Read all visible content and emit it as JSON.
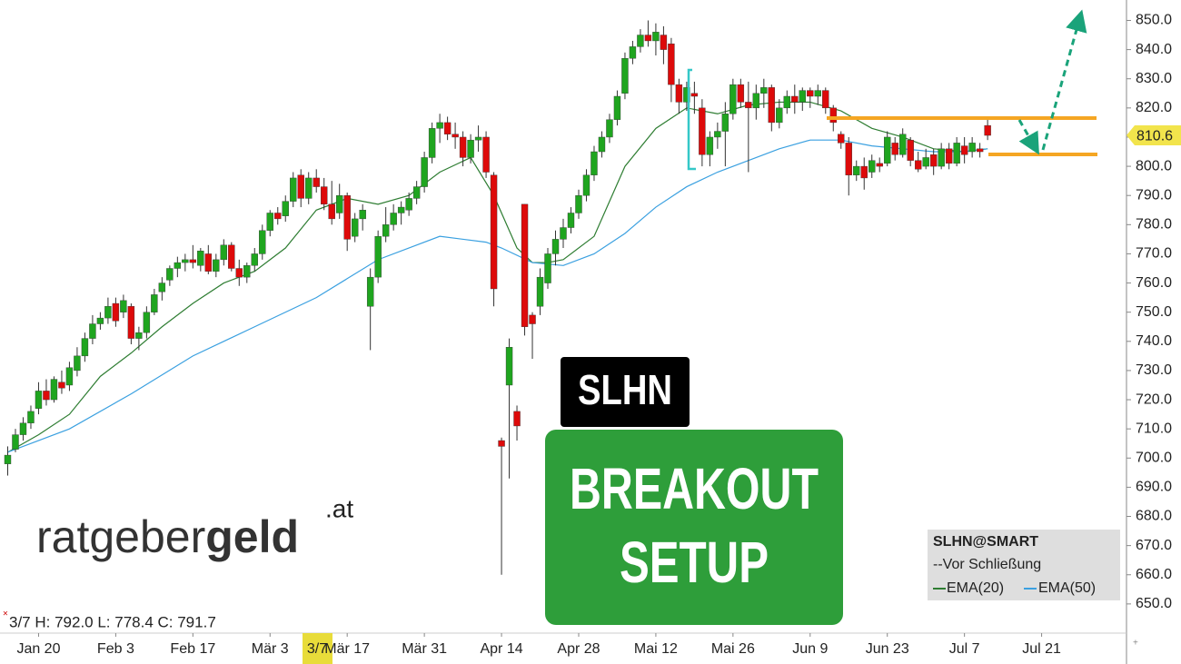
{
  "chart_data": {
    "type": "candlestick",
    "name": "SLHN@SMART",
    "legend_note": "Vor Schließung",
    "info": "3/7 H: 792.0 L: 778.4 C: 791.7",
    "crosshair_label": "3/7",
    "up_color": "#1fa51f",
    "down_color": "#dd0a0a",
    "last_price_color": "#f2e44c",
    "xlim": [
      -1,
      145
    ],
    "ylim": [
      640,
      857
    ],
    "xticks": [
      {
        "value": 4,
        "label": "Jan 20"
      },
      {
        "value": 14,
        "label": "Feb 3"
      },
      {
        "value": 24,
        "label": "Feb 17"
      },
      {
        "value": 34,
        "label": "Mär 3"
      },
      {
        "value": 44,
        "label": "Mär 17"
      },
      {
        "value": 54,
        "label": "Mär 31"
      },
      {
        "value": 64,
        "label": "Apr 14"
      },
      {
        "value": 74,
        "label": "Apr 28"
      },
      {
        "value": 84,
        "label": "Mai 12"
      },
      {
        "value": 94,
        "label": "Mai 26"
      },
      {
        "value": 104,
        "label": "Jun 9"
      },
      {
        "value": 114,
        "label": "Jun 23"
      },
      {
        "value": 124,
        "label": "Jul 7"
      },
      {
        "value": 134,
        "label": "Jul 21"
      }
    ],
    "yticks": [
      {
        "value": 650,
        "label": "650.0"
      },
      {
        "value": 660,
        "label": "660.0"
      },
      {
        "value": 670,
        "label": "670.0"
      },
      {
        "value": 680,
        "label": "680.0"
      },
      {
        "value": 690,
        "label": "690.0"
      },
      {
        "value": 700,
        "label": "700.0"
      },
      {
        "value": 710,
        "label": "710.0"
      },
      {
        "value": 720,
        "label": "720.0"
      },
      {
        "value": 730,
        "label": "730.0"
      },
      {
        "value": 740,
        "label": "740.0"
      },
      {
        "value": 750,
        "label": "750.0"
      },
      {
        "value": 760,
        "label": "760.0"
      },
      {
        "value": 770,
        "label": "770.0"
      },
      {
        "value": 780,
        "label": "780.0"
      },
      {
        "value": 790,
        "label": "790.0"
      },
      {
        "value": 800,
        "label": "800.0"
      },
      {
        "value": 810,
        "label": "810.0"
      },
      {
        "value": 820,
        "label": "820.0"
      },
      {
        "value": 830,
        "label": "830.0"
      },
      {
        "value": 840,
        "label": "840.0"
      },
      {
        "value": 850,
        "label": "850.0"
      }
    ],
    "ohlc": [
      [
        698,
        704,
        694,
        701
      ],
      [
        703,
        710,
        702,
        708
      ],
      [
        708,
        714,
        706,
        712
      ],
      [
        712,
        718,
        710,
        716
      ],
      [
        717,
        726,
        715,
        723
      ],
      [
        723,
        727,
        718,
        720
      ],
      [
        720,
        728,
        719,
        727
      ],
      [
        726,
        730,
        722,
        724
      ],
      [
        725,
        733,
        723,
        731
      ],
      [
        730,
        738,
        728,
        735
      ],
      [
        735,
        743,
        733,
        741
      ],
      [
        741,
        749,
        739,
        746
      ],
      [
        746,
        750,
        744,
        748
      ],
      [
        748,
        755,
        746,
        752
      ],
      [
        753,
        755,
        745,
        747
      ],
      [
        750,
        756,
        748,
        754
      ],
      [
        752,
        753,
        739,
        741
      ],
      [
        741,
        745,
        737,
        743
      ],
      [
        743,
        752,
        741,
        750
      ],
      [
        750,
        758,
        749,
        756
      ],
      [
        757,
        762,
        754,
        760
      ],
      [
        761,
        766,
        759,
        765
      ],
      [
        765,
        769,
        762,
        767
      ],
      [
        767,
        770,
        764,
        768
      ],
      [
        768,
        773,
        765,
        767
      ],
      [
        766,
        772,
        764,
        771
      ],
      [
        770,
        773,
        763,
        764
      ],
      [
        764,
        770,
        762,
        768
      ],
      [
        768,
        775,
        766,
        773
      ],
      [
        773,
        774,
        764,
        765
      ],
      [
        765,
        768,
        759,
        762
      ],
      [
        762,
        767,
        760,
        766
      ],
      [
        766,
        772,
        764,
        770
      ],
      [
        770,
        780,
        768,
        778
      ],
      [
        778,
        785,
        776,
        784
      ],
      [
        784,
        786,
        780,
        782
      ],
      [
        783,
        790,
        781,
        788
      ],
      [
        788,
        798,
        786,
        796
      ],
      [
        797,
        799,
        786,
        789
      ],
      [
        789,
        798,
        787,
        796
      ],
      [
        796,
        799,
        791,
        793
      ],
      [
        793,
        796,
        785,
        787
      ],
      [
        787,
        795,
        780,
        782
      ],
      [
        784,
        794,
        782,
        790
      ],
      [
        790,
        791,
        771,
        775
      ],
      [
        776,
        784,
        774,
        782
      ],
      [
        782,
        787,
        778,
        785
      ],
      [
        752,
        765,
        737,
        762
      ],
      [
        762,
        778,
        760,
        776
      ],
      [
        776,
        786,
        774,
        780
      ],
      [
        780,
        787,
        778,
        784
      ],
      [
        784,
        788,
        780,
        786
      ],
      [
        785,
        791,
        783,
        789
      ],
      [
        789,
        795,
        787,
        793
      ],
      [
        793,
        805,
        791,
        803
      ],
      [
        803,
        815,
        801,
        813
      ],
      [
        813,
        818,
        808,
        815
      ],
      [
        815,
        817,
        809,
        811
      ],
      [
        811,
        815,
        806,
        810
      ],
      [
        810,
        812,
        800,
        803
      ],
      [
        803,
        811,
        801,
        809
      ],
      [
        809,
        814,
        805,
        810
      ],
      [
        810,
        812,
        796,
        798
      ],
      [
        797,
        798,
        752,
        758
      ],
      [
        706,
        707,
        660,
        704
      ],
      [
        725,
        741,
        693,
        738
      ],
      [
        716,
        718,
        706,
        711
      ],
      [
        787,
        787,
        742,
        745
      ],
      [
        749,
        750,
        734,
        746
      ],
      [
        752,
        765,
        749,
        762
      ],
      [
        760,
        772,
        758,
        770
      ],
      [
        770,
        778,
        766,
        775
      ],
      [
        775,
        782,
        772,
        779
      ],
      [
        779,
        786,
        777,
        784
      ],
      [
        784,
        792,
        782,
        790
      ],
      [
        790,
        799,
        788,
        797
      ],
      [
        797,
        807,
        795,
        805
      ],
      [
        805,
        812,
        803,
        810
      ],
      [
        810,
        818,
        808,
        816
      ],
      [
        816,
        826,
        814,
        824
      ],
      [
        825,
        839,
        823,
        837
      ],
      [
        837,
        843,
        835,
        841
      ],
      [
        841,
        847,
        839,
        845
      ],
      [
        845,
        850,
        841,
        843
      ],
      [
        843,
        849,
        838,
        846
      ],
      [
        845,
        848,
        835,
        840
      ],
      [
        842,
        844,
        822,
        828
      ],
      [
        828,
        830,
        818,
        822
      ],
      [
        822,
        829,
        819,
        827
      ],
      [
        825,
        829,
        818,
        824
      ],
      [
        820,
        823,
        800,
        804
      ],
      [
        804,
        812,
        800,
        810
      ],
      [
        810,
        815,
        806,
        812
      ],
      [
        812,
        822,
        800,
        818
      ],
      [
        818,
        830,
        816,
        828
      ],
      [
        828,
        830,
        820,
        822
      ],
      [
        822,
        829,
        798,
        820
      ],
      [
        820,
        828,
        816,
        825
      ],
      [
        825,
        830,
        820,
        827
      ],
      [
        827,
        828,
        812,
        815
      ],
      [
        815,
        823,
        813,
        820
      ],
      [
        820,
        826,
        818,
        824
      ],
      [
        824,
        828,
        818,
        822
      ],
      [
        822,
        827,
        819,
        826
      ],
      [
        826,
        827,
        820,
        824
      ],
      [
        824,
        828,
        821,
        826
      ],
      [
        826,
        827,
        818,
        820
      ],
      [
        820,
        821,
        812,
        815
      ],
      [
        811,
        812,
        806,
        808
      ],
      [
        808,
        810,
        790,
        797
      ],
      [
        797,
        802,
        795,
        800
      ],
      [
        800,
        803,
        792,
        796
      ],
      [
        798,
        804,
        796,
        802
      ],
      [
        801,
        803,
        798,
        800
      ],
      [
        801,
        812,
        800,
        810
      ],
      [
        808,
        810,
        802,
        804
      ],
      [
        804,
        813,
        803,
        811
      ],
      [
        809,
        810,
        800,
        802
      ],
      [
        802,
        805,
        798,
        799
      ],
      [
        800,
        806,
        799,
        803
      ],
      [
        804,
        806,
        797,
        800
      ],
      [
        800,
        808,
        799,
        806
      ],
      [
        806,
        808,
        799,
        801
      ],
      [
        801,
        810,
        800,
        808
      ],
      [
        807,
        810,
        801,
        804
      ],
      [
        805,
        810,
        803,
        808
      ],
      [
        806,
        808,
        803,
        805
      ],
      [
        814,
        816,
        809,
        810.6
      ]
    ],
    "series": [
      {
        "name": "EMA(20)",
        "color": "#2e7d32",
        "x": [
          0,
          4,
          8,
          12,
          16,
          20,
          24,
          28,
          32,
          36,
          40,
          44,
          48,
          52,
          56,
          60,
          63,
          66,
          68,
          70,
          72,
          76,
          80,
          84,
          88,
          92,
          96,
          100,
          104,
          108,
          112,
          116,
          120,
          124,
          127
        ],
        "values": [
          702,
          708,
          715,
          728,
          736,
          745,
          753,
          760,
          764,
          772,
          785,
          789,
          787,
          790,
          798,
          803,
          790,
          772,
          767,
          767,
          768,
          776,
          800,
          813,
          820,
          818,
          821,
          822,
          822,
          819,
          813,
          810,
          806,
          805,
          806
        ]
      },
      {
        "name": "EMA(50)",
        "color": "#3aa0e0",
        "x": [
          0,
          8,
          16,
          24,
          32,
          40,
          48,
          56,
          62,
          64,
          68,
          72,
          76,
          80,
          84,
          88,
          92,
          96,
          100,
          104,
          108,
          112,
          116,
          120,
          124,
          127
        ],
        "values": [
          702,
          710,
          722,
          735,
          745,
          755,
          768,
          776,
          774,
          772,
          767,
          766,
          770,
          777,
          786,
          793,
          798,
          802,
          806,
          809,
          809,
          807,
          806,
          805,
          805,
          806
        ]
      }
    ]
  },
  "logo": {
    "part1": "ratgeber",
    "part2": "geld",
    "suffix": ".at"
  },
  "badge": {
    "ticker": "SLHN",
    "lines": [
      "BREAKOUT",
      "SETUP"
    ]
  }
}
